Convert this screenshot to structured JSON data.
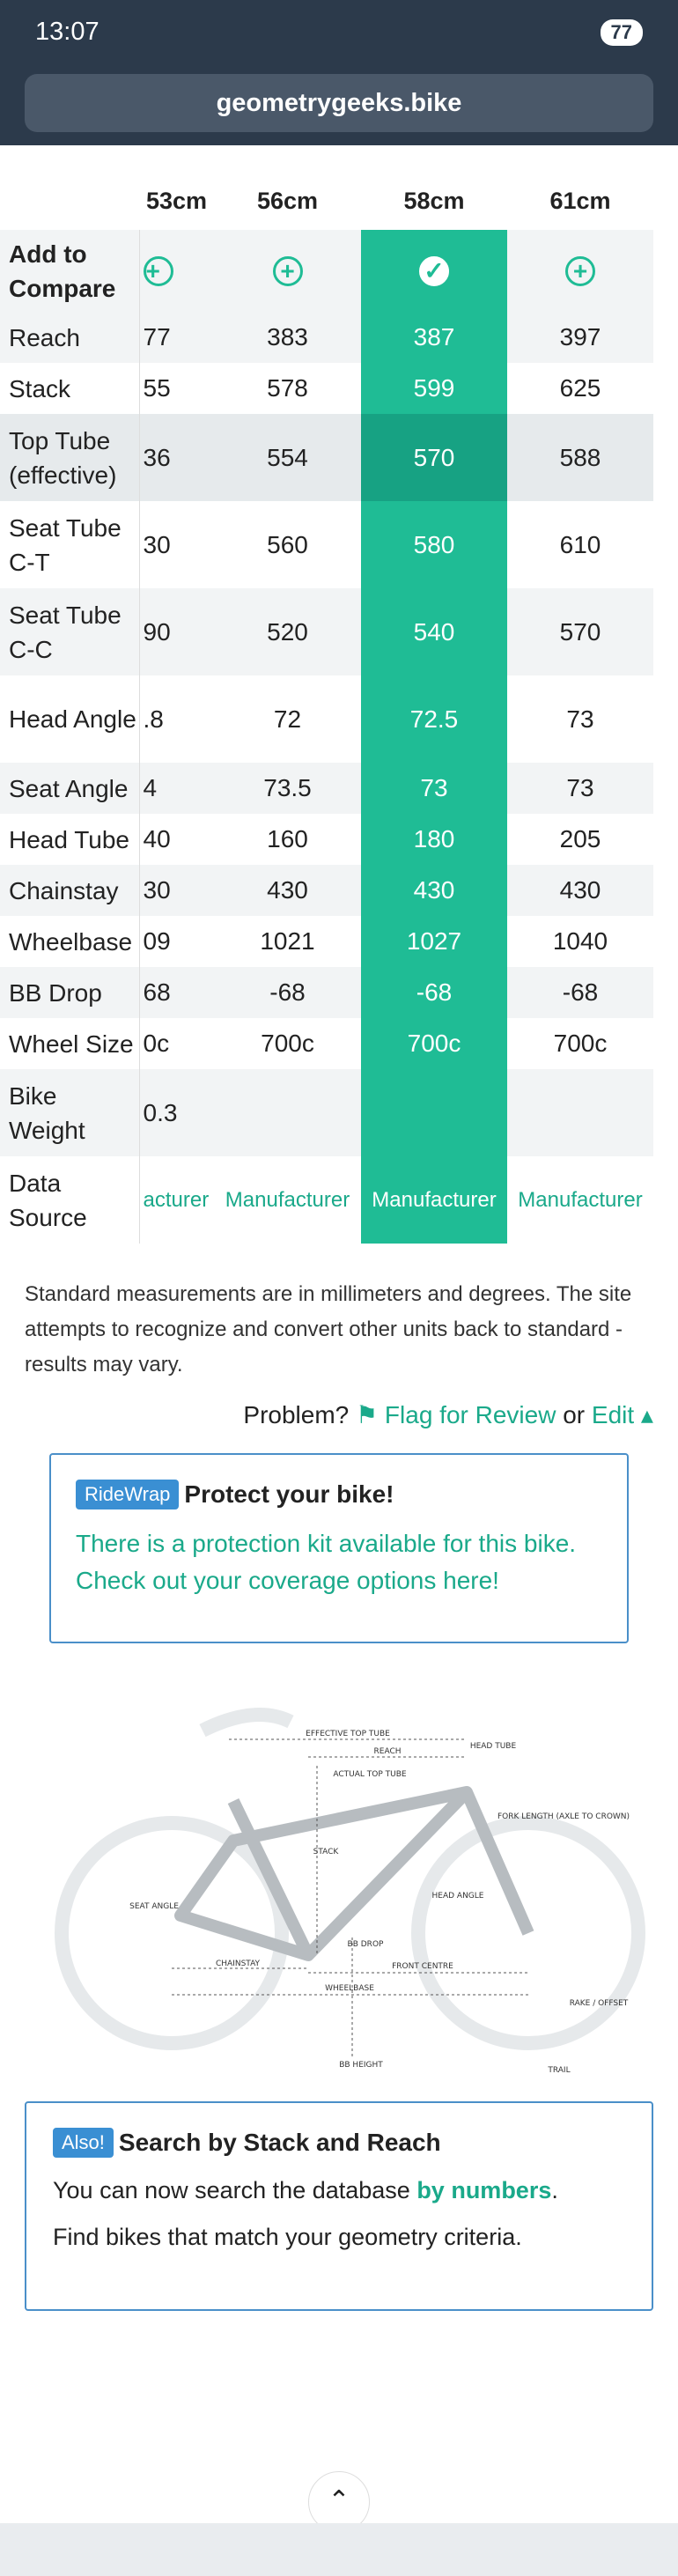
{
  "status_bar": {
    "time": "13:07",
    "battery": "77"
  },
  "browser": {
    "url": "geometrygeeks.bike"
  },
  "table": {
    "columns": [
      "53cm",
      "56cm",
      "58cm",
      "61cm"
    ],
    "compare_label": "Add to Compare",
    "rows": [
      {
        "label": "Reach",
        "cells": [
          "77",
          "383",
          "387",
          "397"
        ]
      },
      {
        "label": "Stack",
        "cells": [
          "55",
          "578",
          "599",
          "625"
        ]
      },
      {
        "label": "Top Tube (effective)",
        "cells": [
          "36",
          "554",
          "570",
          "588"
        ]
      },
      {
        "label": "Seat Tube C-T",
        "cells": [
          "30",
          "560",
          "580",
          "610"
        ]
      },
      {
        "label": "Seat Tube C-C",
        "cells": [
          "90",
          "520",
          "540",
          "570"
        ]
      },
      {
        "label": "Head Angle",
        "cells": [
          ".8",
          "72",
          "72.5",
          "73"
        ]
      },
      {
        "label": "Seat Angle",
        "cells": [
          "4",
          "73.5",
          "73",
          "73"
        ]
      },
      {
        "label": "Head Tube",
        "cells": [
          "40",
          "160",
          "180",
          "205"
        ]
      },
      {
        "label": "Chainstay",
        "cells": [
          "30",
          "430",
          "430",
          "430"
        ]
      },
      {
        "label": "Wheelbase",
        "cells": [
          "09",
          "1021",
          "1027",
          "1040"
        ]
      },
      {
        "label": "BB Drop",
        "cells": [
          "68",
          "-68",
          "-68",
          "-68"
        ]
      },
      {
        "label": "Wheel Size",
        "cells": [
          "0c",
          "700c",
          "700c",
          "700c"
        ]
      },
      {
        "label": "Bike Weight",
        "cells": [
          "0.3",
          null,
          null,
          null
        ]
      },
      {
        "label": "Data Source",
        "cells": [
          "acturer",
          "Manufacturer",
          "Manufacturer",
          "Manufacturer"
        ]
      }
    ]
  },
  "note": "Standard measurements are in millimeters and degrees. The site attempts to recognize and convert other units back to standard - results may vary.",
  "problem": {
    "label": "Problem?",
    "flag": "Flag for Review",
    "or": "or",
    "edit": "Edit"
  },
  "promo": {
    "badge": "RideWrap",
    "title": "Protect your bike!",
    "text": "There is a protection kit available for this bike. Check out your coverage options here!"
  },
  "diagram": {
    "labels": [
      "EFFECTIVE TOP TUBE",
      "REACH",
      "ACTUAL TOP TUBE",
      "STACK",
      "HEAD ANGLE",
      "SEAT ANGLE",
      "BB DROP",
      "CHAINSTAY",
      "FRONT CENTRE",
      "WHEELBASE",
      "BB HEIGHT",
      "TRAIL",
      "RAKE / OFFSET",
      "HEAD TUBE",
      "FORK LENGTH (AXLE TO CROWN)"
    ]
  },
  "also": {
    "badge": "Also!",
    "title": "Search by Stack and Reach",
    "text_before": "You can now search the database ",
    "link": "by numbers",
    "text_after": ".",
    "line2": "Find bikes that match your geometry criteria."
  }
}
